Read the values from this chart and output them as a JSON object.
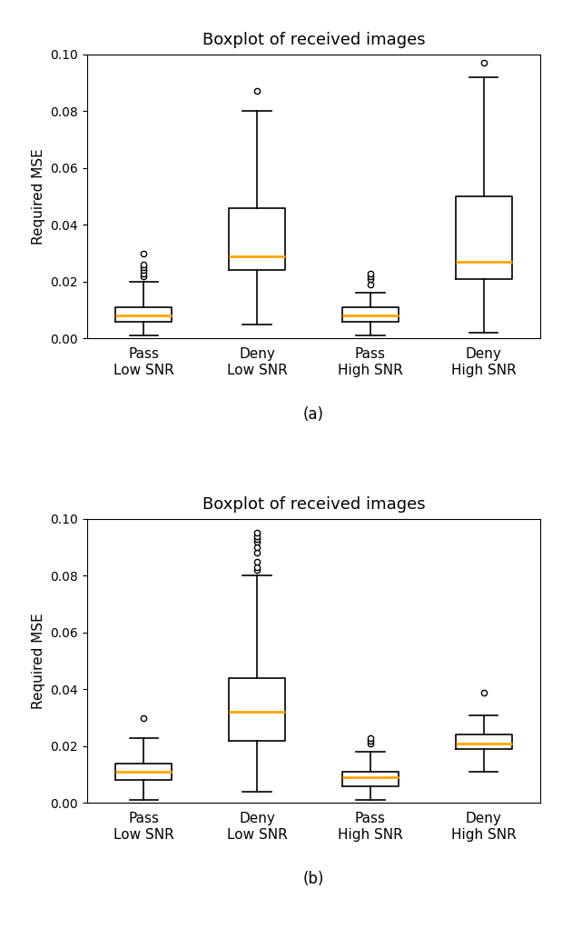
{
  "title": "Boxplot of received images",
  "ylabel": "Required MSE",
  "categories": [
    "Pass\nLow SNR",
    "Deny\nLow SNR",
    "Pass\nHigh SNR",
    "Deny\nHigh SNR"
  ],
  "ylim": [
    0,
    0.1
  ],
  "yticks": [
    0.0,
    0.02,
    0.04,
    0.06,
    0.08,
    0.1
  ],
  "subplot_labels": [
    "(a)",
    "(b)"
  ],
  "median_color": "#FFA500",
  "box_color": "black",
  "plot_a": {
    "boxes": [
      {
        "med": 0.008,
        "q1": 0.006,
        "q3": 0.011,
        "whislo": 0.001,
        "whishi": 0.02,
        "fliers": [
          0.022,
          0.023,
          0.024,
          0.025,
          0.026,
          0.03
        ]
      },
      {
        "med": 0.029,
        "q1": 0.024,
        "q3": 0.046,
        "whislo": 0.005,
        "whishi": 0.08,
        "fliers": [
          0.087
        ]
      },
      {
        "med": 0.008,
        "q1": 0.006,
        "q3": 0.011,
        "whislo": 0.001,
        "whishi": 0.016,
        "fliers": [
          0.019,
          0.021,
          0.022,
          0.023
        ]
      },
      {
        "med": 0.027,
        "q1": 0.021,
        "q3": 0.05,
        "whislo": 0.002,
        "whishi": 0.092,
        "fliers": [
          0.097
        ]
      }
    ]
  },
  "plot_b": {
    "boxes": [
      {
        "med": 0.011,
        "q1": 0.008,
        "q3": 0.014,
        "whislo": 0.001,
        "whishi": 0.023,
        "fliers": [
          0.03
        ]
      },
      {
        "med": 0.032,
        "q1": 0.022,
        "q3": 0.044,
        "whislo": 0.004,
        "whishi": 0.08,
        "fliers": [
          0.082,
          0.083,
          0.085,
          0.088,
          0.09,
          0.092,
          0.093,
          0.094,
          0.095
        ]
      },
      {
        "med": 0.009,
        "q1": 0.006,
        "q3": 0.011,
        "whislo": 0.001,
        "whishi": 0.018,
        "fliers": [
          0.021,
          0.022,
          0.023
        ]
      },
      {
        "med": 0.021,
        "q1": 0.019,
        "q3": 0.024,
        "whislo": 0.011,
        "whishi": 0.031,
        "fliers": [
          0.039
        ]
      }
    ]
  }
}
